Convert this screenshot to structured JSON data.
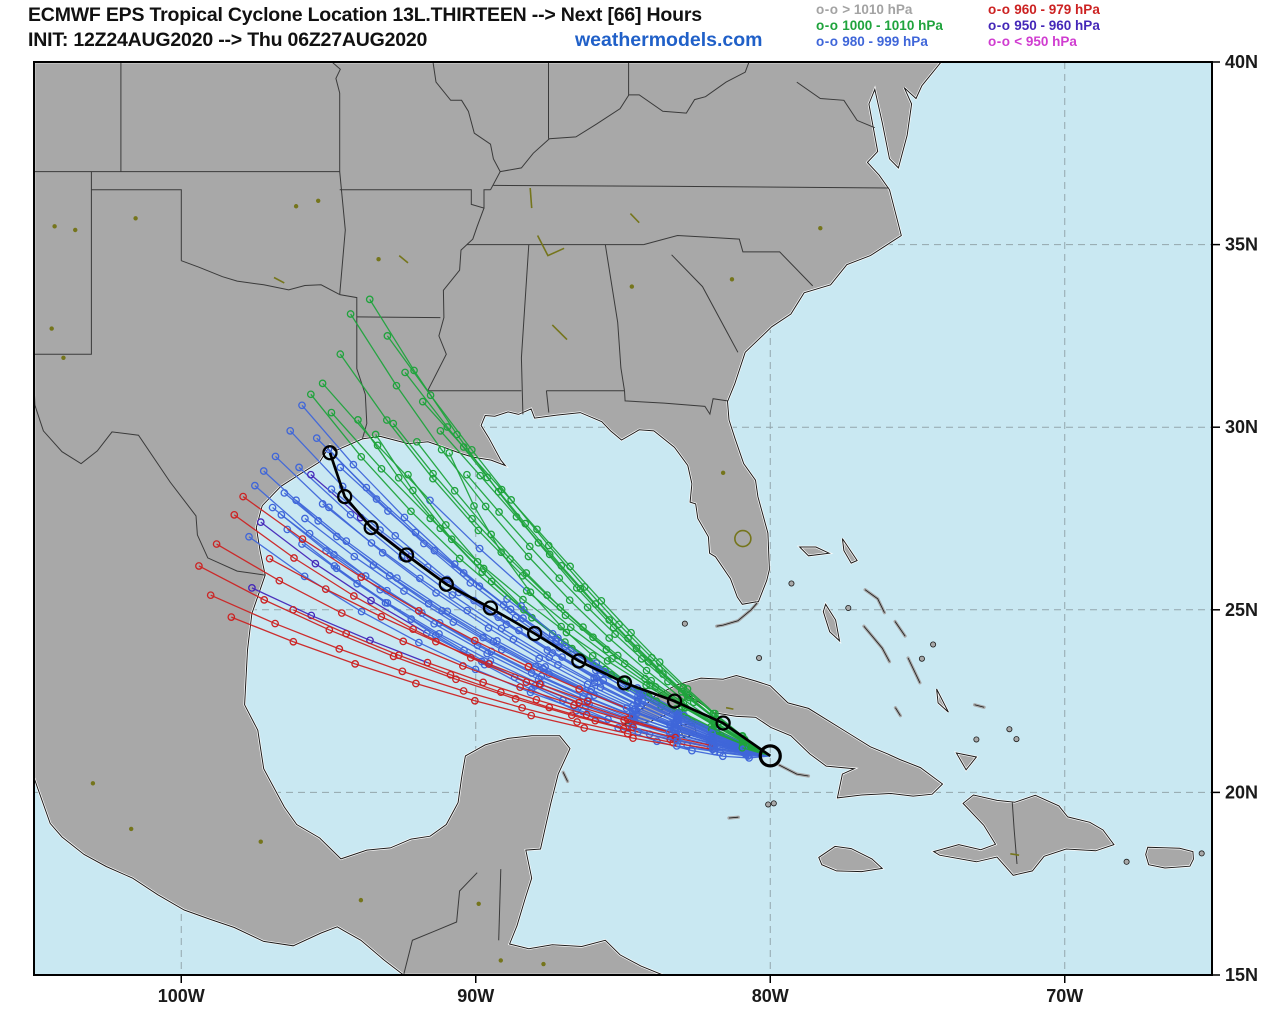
{
  "header": {
    "title_line1": "ECMWF EPS Tropical Cyclone Location 13L.THIRTEEN --> Next [66] Hours",
    "title_line2": "INIT: 12Z24AUG2020 --> Thu 06Z27AUG2020",
    "brand": "weathermodels.com"
  },
  "legend": {
    "marker": "o-o",
    "columns": [
      [
        {
          "label": "> 1010 hPa",
          "color": "#a3a3a3",
          "cat": "gray"
        },
        {
          "label": "1000 - 1010 hPa",
          "color": "#1fa33c",
          "cat": "green"
        },
        {
          "label": "980 - 999 hPa",
          "color": "#3f66d9",
          "cat": "blue"
        }
      ],
      [
        {
          "label": "960 - 979 hPa",
          "color": "#cc2222",
          "cat": "red"
        },
        {
          "label": "950 - 960 hPa",
          "color": "#4427b8",
          "cat": "navy"
        },
        {
          "label": "< 950 hPa",
          "color": "#d03cd0",
          "cat": "magenta"
        }
      ]
    ]
  },
  "axes": {
    "lon_ticks": [
      {
        "label": "100W",
        "lon": 100
      },
      {
        "label": "90W",
        "lon": 90
      },
      {
        "label": "80W",
        "lon": 80
      },
      {
        "label": "70W",
        "lon": 70
      }
    ],
    "lat_ticks": [
      {
        "label": "40N",
        "lat": 40
      },
      {
        "label": "35N",
        "lat": 35
      },
      {
        "label": "30N",
        "lat": 30
      },
      {
        "label": "25N",
        "lat": 25
      },
      {
        "label": "20N",
        "lat": 20
      },
      {
        "label": "15N",
        "lat": 15
      }
    ],
    "grid_lons": [
      100,
      90,
      80,
      70
    ],
    "grid_lats": [
      35,
      30,
      25,
      20
    ]
  },
  "chart_data": {
    "type": "map-tracks",
    "storm": "13L.THIRTEEN",
    "forecast_hours": 66,
    "init": "12Z24AUG2020",
    "valid_end": "Thu 06Z27AUG2020",
    "bounds": {
      "lon_west": 105,
      "lon_east": 65,
      "lat_north": 40,
      "lat_south": 15
    },
    "category_colors": {
      "g": "#1fa33c",
      "b": "#3f66d9",
      "r": "#cc2222",
      "n": "#4427b8",
      "y": "#a3a3a3",
      "m": "#d03cd0"
    },
    "mean_track": {
      "color": "#000000",
      "points": [
        [
          80.0,
          21.0
        ],
        [
          81.6,
          21.9
        ],
        [
          83.25,
          22.5
        ],
        [
          84.95,
          23.0
        ],
        [
          86.5,
          23.6
        ],
        [
          88.0,
          24.35
        ],
        [
          89.5,
          25.05
        ],
        [
          91.0,
          25.7
        ],
        [
          92.35,
          26.5
        ],
        [
          93.55,
          27.25
        ],
        [
          94.45,
          28.1
        ],
        [
          94.95,
          29.3
        ]
      ]
    },
    "members": [
      {
        "p1": [
          83.3,
          22.6
        ],
        "p2": [
          88.0,
          26.0
        ],
        "end": [
          93.6,
          33.5
        ],
        "profile": "gggggggggggg"
      },
      {
        "p1": [
          83.1,
          22.4
        ],
        "p2": [
          88.5,
          25.5
        ],
        "end": [
          94.25,
          33.1
        ],
        "profile": "gggggggggggg"
      },
      {
        "p1": [
          83.4,
          22.8
        ],
        "p2": [
          87.5,
          26.3
        ],
        "end": [
          93.0,
          32.5
        ],
        "profile": "gggggggggggg"
      },
      {
        "p1": [
          83.0,
          22.3
        ],
        "p2": [
          88.8,
          25.0
        ],
        "end": [
          94.6,
          32.0
        ],
        "profile": "gggggggggggg"
      },
      {
        "p1": [
          83.2,
          22.5
        ],
        "p2": [
          87.0,
          25.8
        ],
        "end": [
          92.4,
          31.5
        ],
        "profile": "gggggggggggg"
      },
      {
        "p1": [
          82.9,
          22.2
        ],
        "p2": [
          88.2,
          24.6
        ],
        "end": [
          95.2,
          31.2
        ],
        "profile": "ggggggggbbgg"
      },
      {
        "p1": [
          83.5,
          22.9
        ],
        "p2": [
          86.5,
          26.0
        ],
        "end": [
          91.8,
          30.7
        ],
        "profile": "gggggggggggg"
      },
      {
        "p1": [
          83.0,
          22.4
        ],
        "p2": [
          88.6,
          24.4
        ],
        "end": [
          94.9,
          30.4
        ],
        "profile": "gggggggggggg"
      },
      {
        "p1": [
          83.2,
          22.3
        ],
        "p2": [
          89.3,
          24.2
        ],
        "end": [
          95.6,
          30.9
        ],
        "profile": "ggggbbbbgggg"
      },
      {
        "p1": [
          83.6,
          22.7
        ],
        "p2": [
          86.0,
          25.2
        ],
        "end": [
          91.2,
          29.9
        ],
        "profile": "gggggggggggg"
      },
      {
        "p1": [
          83.1,
          22.2
        ],
        "p2": [
          89.0,
          24.0
        ],
        "end": [
          94.0,
          30.2
        ],
        "profile": "gggggggggggg"
      },
      {
        "p1": [
          83.3,
          22.5
        ],
        "p2": [
          87.8,
          24.8
        ],
        "end": [
          92.8,
          30.1
        ],
        "profile": "gggggggggggg"
      },
      {
        "p1": [
          82.8,
          22.1
        ],
        "p2": [
          88.9,
          23.8
        ],
        "end": [
          93.4,
          29.8
        ],
        "profile": "ggbbgggggggg"
      },
      {
        "p1": [
          83.4,
          22.4
        ],
        "p2": [
          87.2,
          24.4
        ],
        "end": [
          92.0,
          29.6
        ],
        "profile": "gggggggggggg"
      },
      {
        "p1": [
          83.0,
          22.0
        ],
        "p2": [
          88.0,
          23.6
        ],
        "end": [
          90.9,
          29.3
        ],
        "profile": "gggggggggggg"
      },
      {
        "p1": [
          83.2,
          22.6
        ],
        "p2": [
          86.2,
          24.8
        ],
        "end": [
          90.3,
          28.7
        ],
        "profile": "gggggggggggg"
      },
      {
        "p1": [
          82.7,
          21.9
        ],
        "p2": [
          87.6,
          23.3
        ],
        "end": [
          92.3,
          28.7
        ],
        "profile": "ggggggbbbggg"
      },
      {
        "p1": [
          83.0,
          21.8
        ],
        "p2": [
          89.5,
          24.3
        ],
        "end": [
          95.9,
          30.6
        ],
        "profile": "ggbbbbbbbbbb"
      },
      {
        "p1": [
          82.8,
          21.7
        ],
        "p2": [
          89.8,
          24.0
        ],
        "end": [
          96.3,
          29.9
        ],
        "profile": "gbbbbbbbbbbb"
      },
      {
        "p1": [
          83.1,
          21.9
        ],
        "p2": [
          89.2,
          24.5
        ],
        "end": [
          95.4,
          29.7
        ],
        "profile": "ggbbbbbbbbbb"
      },
      {
        "p1": [
          82.9,
          21.6
        ],
        "p2": [
          90.2,
          23.8
        ],
        "end": [
          96.8,
          29.2
        ],
        "profile": "gbbbbbbbbbbb"
      },
      {
        "p1": [
          83.2,
          22.0
        ],
        "p2": [
          89.0,
          24.1
        ],
        "end": [
          95.0,
          29.4
        ],
        "profile": "gggbbbbbbbbb"
      },
      {
        "p1": [
          82.7,
          21.5
        ],
        "p2": [
          90.5,
          23.5
        ],
        "end": [
          97.2,
          28.8
        ],
        "profile": "gbbbbbbbbbbb"
      },
      {
        "p1": [
          83.0,
          21.7
        ],
        "p2": [
          89.6,
          23.9
        ],
        "end": [
          96.0,
          28.9
        ],
        "profile": "ggbbbbbbbbbb"
      },
      {
        "p1": [
          82.6,
          21.4
        ],
        "p2": [
          90.8,
          23.3
        ],
        "end": [
          97.5,
          28.4
        ],
        "profile": "bbbbbbbbbbbb"
      },
      {
        "p1": [
          83.1,
          21.8
        ],
        "p2": [
          89.4,
          24.2
        ],
        "end": [
          95.6,
          28.7
        ],
        "profile": "ggbbbbbbbnnn"
      },
      {
        "p1": [
          82.9,
          21.5
        ],
        "p2": [
          90.0,
          23.6
        ],
        "end": [
          96.5,
          28.2
        ],
        "profile": "gbbbbbbbbbbb"
      },
      {
        "p1": [
          83.3,
          22.1
        ],
        "p2": [
          88.6,
          24.3
        ],
        "end": [
          94.6,
          28.9
        ],
        "profile": "gggbbbbbbbbb"
      },
      {
        "p1": [
          82.8,
          21.3
        ],
        "p2": [
          90.3,
          23.2
        ],
        "end": [
          96.9,
          27.8
        ],
        "profile": "bbbbbbbbbbbb"
      },
      {
        "p1": [
          83.0,
          21.6
        ],
        "p2": [
          89.9,
          23.7
        ],
        "end": [
          96.1,
          28.0
        ],
        "profile": "gbbbbbbbbbbb"
      },
      {
        "p1": [
          82.6,
          21.2
        ],
        "p2": [
          90.6,
          23.0
        ],
        "end": [
          97.3,
          27.4
        ],
        "profile": "bbbbbbbbbnnn"
      },
      {
        "p1": [
          83.2,
          21.9
        ],
        "p2": [
          88.8,
          24.0
        ],
        "end": [
          94.9,
          28.3
        ],
        "profile": "ggbbbbbbbbbb"
      },
      {
        "p1": [
          82.9,
          21.4
        ],
        "p2": [
          90.1,
          23.4
        ],
        "end": [
          96.6,
          27.6
        ],
        "profile": "gbbbbbbbbbbb"
      },
      {
        "p1": [
          82.5,
          21.1
        ],
        "p2": [
          90.9,
          22.8
        ],
        "end": [
          97.7,
          27.0
        ],
        "profile": "bbbbbbbbbbbb"
      },
      {
        "p1": [
          83.1,
          21.7
        ],
        "p2": [
          89.1,
          23.8
        ],
        "end": [
          95.2,
          27.9
        ],
        "profile": "ggbbbbbbbbbb"
      },
      {
        "p1": [
          82.7,
          21.3
        ],
        "p2": [
          90.4,
          23.1
        ],
        "end": [
          96.4,
          27.2
        ],
        "profile": "gbbbbbbbbbbb"
      },
      {
        "p1": [
          83.0,
          21.5
        ],
        "p2": [
          89.7,
          23.5
        ],
        "end": [
          95.8,
          27.5
        ],
        "profile": "gbbbbbbbbbbb"
      },
      {
        "p1": [
          82.4,
          20.8
        ],
        "p2": [
          89.0,
          22.6
        ],
        "end": [
          95.9,
          26.8
        ],
        "profile": "bbbbbbbbbbbb"
      },
      {
        "p1": [
          82.3,
          20.6
        ],
        "p2": [
          88.4,
          22.3
        ],
        "end": [
          94.8,
          26.2
        ],
        "profile": "gbbbbbbbbbbb"
      },
      {
        "p1": [
          82.8,
          21.4
        ],
        "p2": [
          90.8,
          23.0
        ],
        "end": [
          98.2,
          27.6
        ],
        "profile": "gbbbrrrrrrrr"
      },
      {
        "p1": [
          82.9,
          21.5
        ],
        "p2": [
          91.0,
          22.9
        ],
        "end": [
          98.8,
          26.8
        ],
        "profile": "bbbbrrrrrrrr"
      },
      {
        "p1": [
          82.7,
          21.2
        ],
        "p2": [
          91.3,
          22.6
        ],
        "end": [
          99.4,
          26.2
        ],
        "profile": "bbbrrrrrrrrr"
      },
      {
        "p1": [
          82.6,
          21.1
        ],
        "p2": [
          91.0,
          22.4
        ],
        "end": [
          99.0,
          25.4
        ],
        "profile": "gbbrrrrrrrrr"
      },
      {
        "p1": [
          82.5,
          21.0
        ],
        "p2": [
          90.6,
          22.2
        ],
        "end": [
          98.3,
          24.8
        ],
        "profile": "bbbbrrrrrrrr"
      },
      {
        "p1": [
          82.8,
          21.3
        ],
        "p2": [
          90.2,
          22.7
        ],
        "end": [
          97.6,
          25.6
        ],
        "profile": "bbbrrrrrrnnn"
      },
      {
        "p1": [
          83.0,
          21.6
        ],
        "p2": [
          90.0,
          23.2
        ],
        "end": [
          97.0,
          26.4
        ],
        "profile": "gbbbbrrrrrrr"
      },
      {
        "p1": [
          82.9,
          21.2
        ],
        "p2": [
          89.6,
          22.5
        ],
        "end": [
          96.2,
          25.0
        ],
        "profile": "bbbbbrrrrrrr"
      },
      {
        "p1": [
          83.1,
          21.7
        ],
        "p2": [
          90.5,
          23.6
        ],
        "end": [
          97.9,
          28.1
        ],
        "profile": "ggbbbrrrrrrr"
      }
    ]
  }
}
